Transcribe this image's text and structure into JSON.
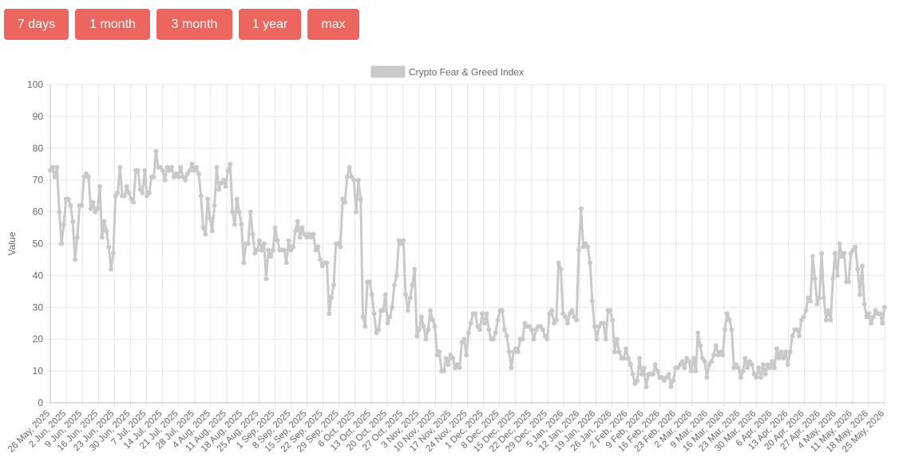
{
  "range_buttons": [
    {
      "label": "7 days"
    },
    {
      "label": "1 month"
    },
    {
      "label": "3 month"
    },
    {
      "label": "1 year"
    },
    {
      "label": "max"
    }
  ],
  "colors": {
    "button_bg": "#ec665f",
    "series": "#c9c9c9",
    "grid": "#e5e5e5"
  },
  "chart_data": {
    "type": "line",
    "title": "",
    "xlabel": "",
    "ylabel": "Value",
    "ylim": [
      0,
      100
    ],
    "yticks": [
      0,
      10,
      20,
      30,
      40,
      50,
      60,
      70,
      80,
      90,
      100
    ],
    "grid": true,
    "legend": "top-center",
    "x_tick_labels": [
      "26 May, 2025",
      "2 Jun, 2025",
      "9 Jun, 2025",
      "16 Jun, 2025",
      "23 Jun, 2025",
      "30 Jun, 2025",
      "7 Jul, 2025",
      "14 Jul, 2025",
      "21 Jul, 2025",
      "28 Jul, 2025",
      "4 Aug, 2025",
      "11 Aug, 2025",
      "18 Aug, 2025",
      "25 Aug, 2025",
      "1 Sep, 2025",
      "8 Sep, 2025",
      "15 Sep, 2025",
      "22 Sep, 2025",
      "29 Sep, 2025",
      "6 Oct, 2025",
      "13 Oct, 2025",
      "20 Oct, 2025",
      "27 Oct, 2025",
      "3 Nov, 2025",
      "10 Nov, 2025",
      "17 Nov, 2025",
      "24 Nov, 2025",
      "1 Dec, 2025",
      "8 Dec, 2025",
      "15 Dec, 2025",
      "22 Dec, 2025",
      "29 Dec, 2025",
      "5 Jan, 2026",
      "12 Jan, 2026",
      "19 Jan, 2026",
      "26 Jan, 2026",
      "2 Feb, 2026",
      "9 Feb, 2026",
      "16 Feb, 2026",
      "23 Feb, 2026",
      "2 Mar, 2026",
      "9 Mar, 2026",
      "16 Mar, 2026",
      "23 Mar, 2026",
      "30 Mar, 2026",
      "6 Apr, 2026",
      "13 Apr, 2026",
      "20 Apr, 2026",
      "27 Apr, 2026",
      "4 May, 2026",
      "11 May, 2026",
      "18 May, 2026",
      "25 May, 2026"
    ],
    "series": [
      {
        "name": "Crypto Fear & Greed Index",
        "values": [
          73,
          74,
          71,
          74,
          60,
          50,
          56,
          64,
          64,
          62,
          57,
          45,
          52,
          62,
          62,
          71,
          72,
          71,
          61,
          63,
          60,
          61,
          68,
          52,
          57,
          54,
          49,
          42,
          47,
          65,
          66,
          74,
          65,
          65,
          68,
          66,
          64,
          63,
          73,
          73,
          67,
          66,
          73,
          65,
          66,
          71,
          71,
          79,
          74,
          74,
          73,
          70,
          74,
          73,
          74,
          71,
          72,
          71,
          74,
          71,
          70,
          72,
          73,
          75,
          73,
          74,
          72,
          65,
          55,
          53,
          64,
          58,
          54,
          62,
          74,
          67,
          69,
          70,
          68,
          73,
          75,
          60,
          56,
          64,
          60,
          56,
          44,
          50,
          50,
          60,
          53,
          47,
          48,
          51,
          48,
          50,
          39,
          48,
          46,
          48,
          55,
          51,
          48,
          48,
          48,
          44,
          51,
          48,
          49,
          54,
          57,
          52,
          55,
          53,
          52,
          53,
          52,
          53,
          48,
          49,
          45,
          43,
          44,
          44,
          28,
          33,
          37,
          50,
          50,
          49,
          64,
          63,
          71,
          74,
          71,
          70,
          60,
          70,
          64,
          27,
          24,
          38,
          38,
          34,
          28,
          22,
          23,
          29,
          29,
          34,
          25,
          27,
          30,
          37,
          40,
          51,
          50,
          51,
          34,
          29,
          33,
          37,
          42,
          21,
          23,
          27,
          24,
          20,
          23,
          29,
          26,
          24,
          15,
          16,
          10,
          10,
          14,
          12,
          15,
          14,
          11,
          12,
          11,
          19,
          20,
          15,
          22,
          25,
          28,
          28,
          24,
          23,
          28,
          25,
          28,
          23,
          20,
          20,
          22,
          26,
          29,
          29,
          23,
          21,
          16,
          11,
          16,
          17,
          16,
          20,
          20,
          25,
          24,
          24,
          23,
          20,
          23,
          24,
          24,
          23,
          21,
          20,
          28,
          29,
          25,
          26,
          44,
          42,
          28,
          27,
          25,
          28,
          29,
          27,
          26,
          48,
          61,
          49,
          50,
          49,
          44,
          32,
          24,
          20,
          24,
          25,
          25,
          20,
          29,
          29,
          26,
          16,
          20,
          16,
          14,
          14,
          17,
          14,
          12,
          9,
          6,
          7,
          14,
          9,
          11,
          5,
          9,
          9,
          9,
          12,
          10,
          8,
          8,
          7,
          8,
          9,
          5,
          7,
          11,
          11,
          12,
          13,
          11,
          14,
          13,
          10,
          14,
          10,
          22,
          18,
          14,
          13,
          8,
          12,
          13,
          15,
          18,
          15,
          16,
          15,
          23,
          28,
          26,
          23,
          11,
          12,
          11,
          8,
          10,
          14,
          11,
          13,
          12,
          9,
          8,
          11,
          8,
          12,
          9,
          12,
          11,
          13,
          11,
          17,
          14,
          16,
          14,
          16,
          12,
          16,
          21,
          23,
          23,
          21,
          26,
          27,
          29,
          33,
          32,
          46,
          39,
          31,
          33,
          47,
          33,
          26,
          29,
          26,
          39,
          47,
          40,
          50,
          46,
          47,
          38,
          38,
          47,
          48,
          49,
          42,
          34,
          43,
          31,
          27,
          28,
          25,
          27,
          29,
          28,
          28,
          25,
          30
        ]
      }
    ]
  }
}
